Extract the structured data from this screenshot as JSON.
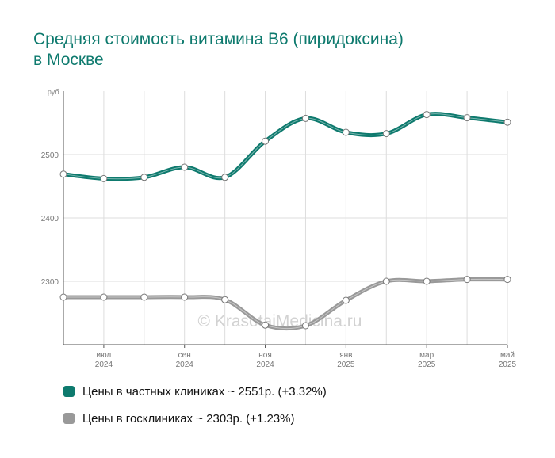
{
  "title_line1": "Средняя стоимость витамина B6 (пиридоксина)",
  "title_line2": "в Москве",
  "watermark": "© KrasotaiMedicina.ru",
  "colors": {
    "private": "#0e7a6e",
    "public": "#999999",
    "title": "#0e7a6e"
  },
  "chart_data": {
    "type": "line",
    "ylabel": "руб.",
    "ylim": [
      2200,
      2600
    ],
    "y_ticks": [
      2300,
      2400,
      2500
    ],
    "x": [
      "2024-06",
      "2024-07",
      "2024-08",
      "2024-09",
      "2024-10",
      "2024-11",
      "2024-12",
      "2025-01",
      "2025-02",
      "2025-03",
      "2025-04",
      "2025-05"
    ],
    "x_ticks": [
      {
        "month": "июл",
        "year": "2024",
        "x": "2024-07"
      },
      {
        "month": "сен",
        "year": "2024",
        "x": "2024-09"
      },
      {
        "month": "ноя",
        "year": "2024",
        "x": "2024-11"
      },
      {
        "month": "янв",
        "year": "2025",
        "x": "2025-01"
      },
      {
        "month": "мар",
        "year": "2025",
        "x": "2025-03"
      },
      {
        "month": "май",
        "year": "2025",
        "x": "2025-05"
      }
    ],
    "grid": true,
    "legend_position": "bottom-left",
    "series": [
      {
        "name": "Цены в частных клиниках ~ 2551р. (+3.32%)",
        "color": "#0e7a6e",
        "values": [
          2469,
          2462,
          2464,
          2480,
          2464,
          2521,
          2557,
          2535,
          2533,
          2563,
          2558,
          2551
        ]
      },
      {
        "name": "Цены в госклиниках ~ 2303р. (+1.23%)",
        "color": "#999999",
        "values": [
          2275,
          2275,
          2275,
          2275,
          2271,
          2231,
          2230,
          2270,
          2300,
          2300,
          2303,
          2303
        ]
      }
    ]
  }
}
